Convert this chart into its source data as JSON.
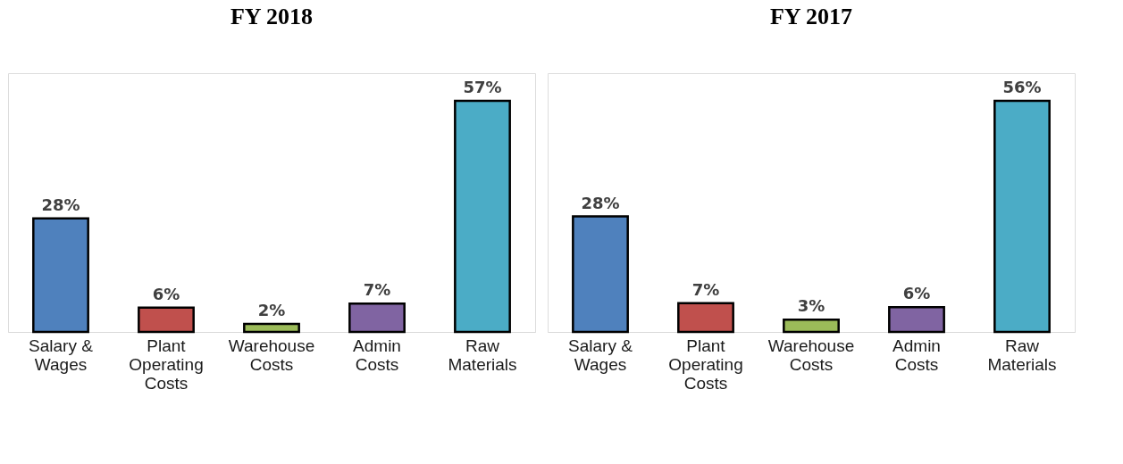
{
  "chart_data": [
    {
      "type": "bar",
      "title": "FY 2018",
      "categories": [
        "Salary & Wages",
        "Plant Operating Costs",
        "Warehouse Costs",
        "Admin Costs",
        "Raw Materials"
      ],
      "values": [
        28,
        6,
        2,
        7,
        57
      ],
      "colors": [
        "#4f81bd",
        "#c0504d",
        "#9bbb59",
        "#8064a2",
        "#4bacc6"
      ],
      "data_labels": true,
      "value_labels": [
        "28%",
        "6%",
        "2%",
        "7%",
        "57%"
      ]
    },
    {
      "type": "bar",
      "title": "FY 2017",
      "categories": [
        "Salary & Wages",
        "Plant Operating Costs",
        "Warehouse Costs",
        "Admin Costs",
        "Raw Materials"
      ],
      "values": [
        28,
        7,
        3,
        6,
        56
      ],
      "colors": [
        "#4f81bd",
        "#c0504d",
        "#9bbb59",
        "#8064a2",
        "#4bacc6"
      ],
      "data_labels": true,
      "value_labels": [
        "28%",
        "7%",
        "3%",
        "6%",
        "56%"
      ]
    }
  ]
}
